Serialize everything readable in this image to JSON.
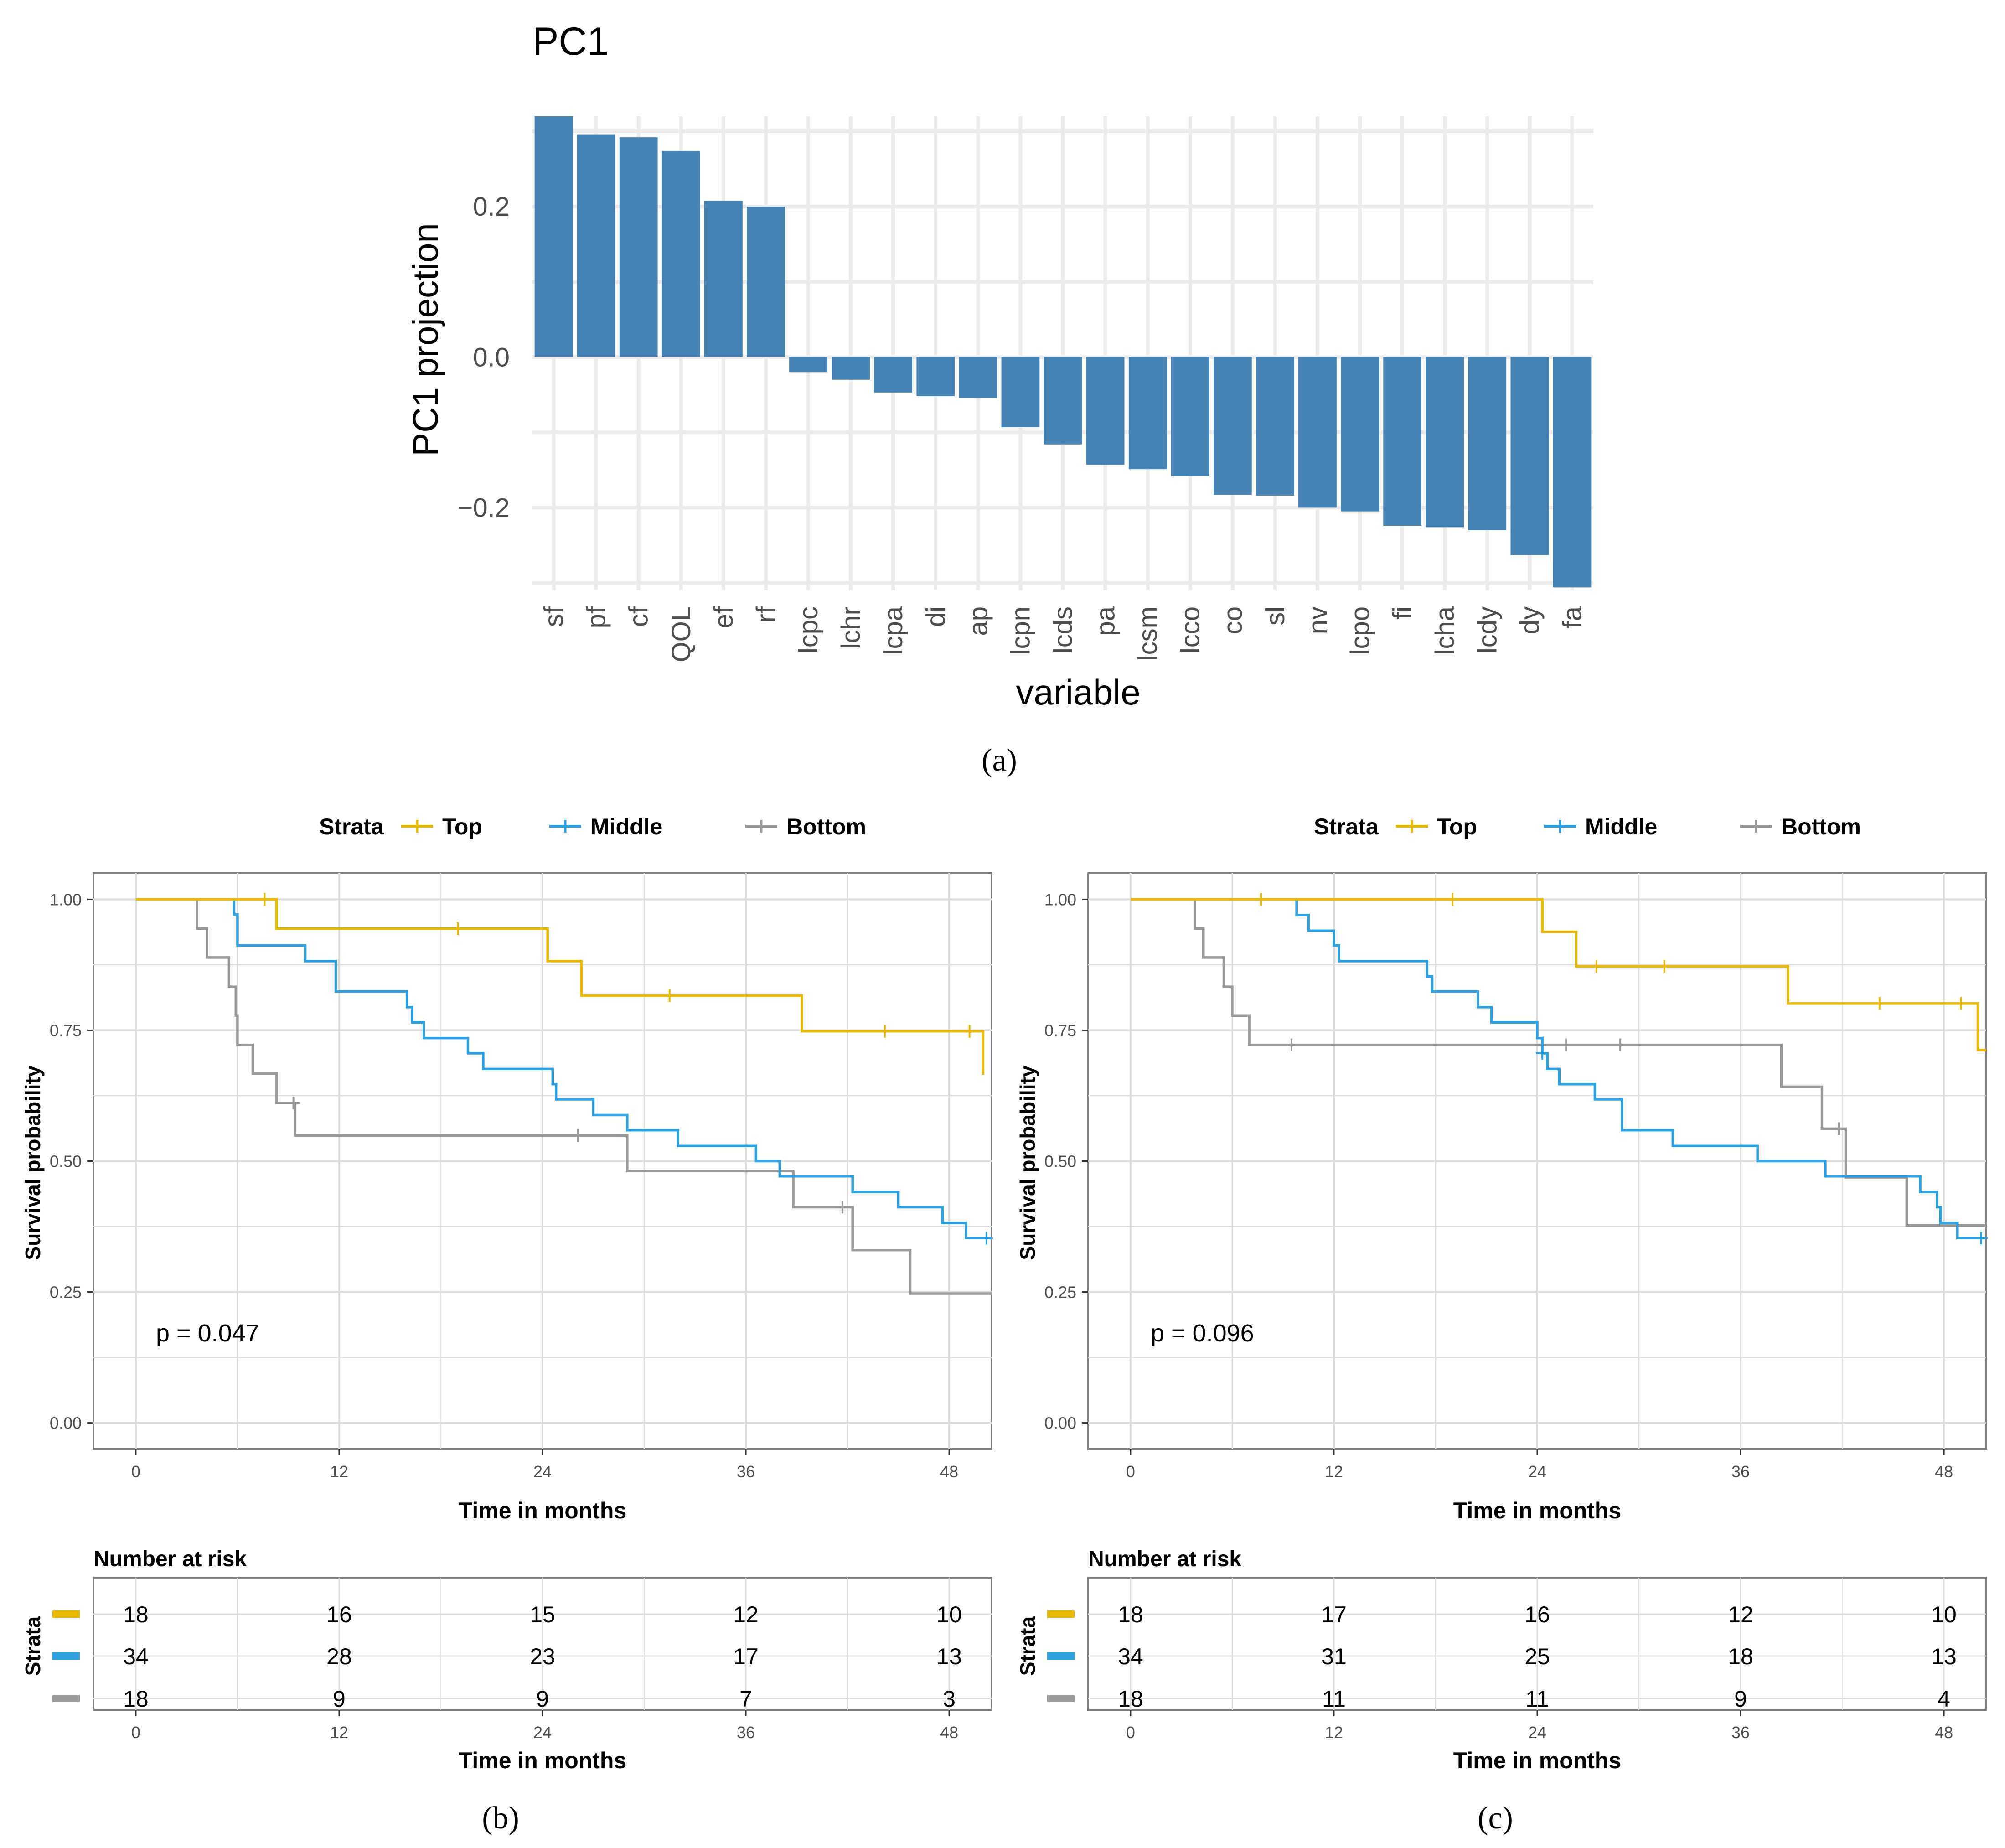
{
  "figure_labels": {
    "a": "(a)",
    "b": "(b)",
    "c": "(c)"
  },
  "colors": {
    "bar": "#4682B4",
    "top": "#E7B800",
    "middle": "#2E9FDF",
    "bottom": "#999999",
    "grid": "#EBEBEB",
    "km_grid": "#DCDCDC"
  },
  "chart_data": [
    {
      "id": "a",
      "type": "bar",
      "title": "PC1",
      "xlabel": "variable",
      "ylabel": "PC1 projection",
      "ylim": [
        -0.31,
        0.32
      ],
      "yticks": [
        -0.2,
        0.0,
        0.2
      ],
      "ytick_labels": [
        "−0.2",
        "0.0",
        "0.2"
      ],
      "categories": [
        "sf",
        "pf",
        "cf",
        "QOL",
        "ef",
        "rf",
        "lcpc",
        "lchr",
        "lcpa",
        "di",
        "ap",
        "lcpn",
        "lcds",
        "pa",
        "lcsm",
        "lcco",
        "co",
        "sl",
        "nv",
        "lcpo",
        "fi",
        "lcha",
        "lcdy",
        "dy",
        "fa"
      ],
      "values": [
        0.32,
        0.296,
        0.292,
        0.274,
        0.208,
        0.2,
        -0.02,
        -0.03,
        -0.047,
        -0.052,
        -0.054,
        -0.093,
        -0.116,
        -0.143,
        -0.149,
        -0.158,
        -0.183,
        -0.184,
        -0.2,
        -0.205,
        -0.224,
        -0.226,
        -0.23,
        -0.263,
        -0.306
      ]
    },
    {
      "id": "b",
      "type": "line",
      "legend_title": "Strata",
      "xlabel": "Time in months",
      "ylabel": "Survival probability",
      "xlim": [
        -2.5,
        50.5
      ],
      "ylim": [
        -0.05,
        1.05
      ],
      "xticks": [
        0,
        12,
        24,
        36,
        48
      ],
      "yticks": [
        0,
        0.25,
        0.5,
        0.75,
        1.0
      ],
      "ytick_labels": [
        "0.00",
        "0.25",
        "0.50",
        "0.75",
        "1.00"
      ],
      "pvalue": "p = 0.047",
      "series": [
        {
          "name": "Top",
          "color_key": "top",
          "steps": [
            [
              0,
              1
            ],
            [
              8.3,
              0.944
            ],
            [
              24.3,
              0.882
            ],
            [
              26.3,
              0.816
            ],
            [
              39.3,
              0.748
            ],
            [
              50.0,
              0.665
            ]
          ],
          "censors": [
            [
              7.6,
              1
            ],
            [
              19,
              0.944
            ],
            [
              31.5,
              0.816
            ],
            [
              44.2,
              0.748
            ],
            [
              49.2,
              0.748
            ]
          ]
        },
        {
          "name": "Middle",
          "color_key": "middle",
          "steps": [
            [
              0,
              1
            ],
            [
              5.8,
              0.971
            ],
            [
              6,
              0.912
            ],
            [
              10,
              0.882
            ],
            [
              11.8,
              0.824
            ],
            [
              16,
              0.794
            ],
            [
              16.3,
              0.765
            ],
            [
              17,
              0.735
            ],
            [
              19.6,
              0.706
            ],
            [
              20.5,
              0.676
            ],
            [
              24.6,
              0.647
            ],
            [
              24.8,
              0.618
            ],
            [
              27,
              0.588
            ],
            [
              29,
              0.559
            ],
            [
              32,
              0.529
            ],
            [
              36.6,
              0.5
            ],
            [
              38,
              0.471
            ],
            [
              42.3,
              0.441
            ],
            [
              45,
              0.412
            ],
            [
              47.6,
              0.382
            ],
            [
              49,
              0.353
            ],
            [
              50.5,
              0.353
            ]
          ],
          "censors": [
            [
              50.2,
              0.353
            ]
          ]
        },
        {
          "name": "Bottom",
          "color_key": "bottom",
          "steps": [
            [
              0,
              1
            ],
            [
              3.6,
              0.944
            ],
            [
              4.2,
              0.889
            ],
            [
              5.5,
              0.833
            ],
            [
              5.9,
              0.778
            ],
            [
              6,
              0.722
            ],
            [
              6.9,
              0.667
            ],
            [
              8.3,
              0.611
            ],
            [
              9.4,
              0.549
            ],
            [
              29,
              0.481
            ],
            [
              38.8,
              0.412
            ],
            [
              42.3,
              0.33
            ],
            [
              45.7,
              0.247
            ],
            [
              50.5,
              0.247
            ]
          ],
          "censors": [
            [
              9.3,
              0.611
            ],
            [
              26.1,
              0.549
            ],
            [
              41.7,
              0.412
            ]
          ]
        }
      ],
      "risk_table": {
        "title": "Number at risk",
        "ylabel": "Strata",
        "times": [
          0,
          12,
          24,
          36,
          48
        ],
        "rows": [
          {
            "name": "Top",
            "color_key": "top",
            "values": [
              "18",
              "16",
              "15",
              "12",
              "10"
            ]
          },
          {
            "name": "Middle",
            "color_key": "middle",
            "values": [
              "34",
              "28",
              "23",
              "17",
              "13"
            ]
          },
          {
            "name": "Bottom",
            "color_key": "bottom",
            "values": [
              "18",
              "9",
              "9",
              "7",
              "3"
            ]
          }
        ]
      }
    },
    {
      "id": "c",
      "type": "line",
      "legend_title": "Strata",
      "xlabel": "Time in months",
      "ylabel": "Survival probability",
      "xlim": [
        -2.5,
        50.5
      ],
      "ylim": [
        -0.05,
        1.05
      ],
      "xticks": [
        0,
        12,
        24,
        36,
        48
      ],
      "yticks": [
        0,
        0.25,
        0.5,
        0.75,
        1.0
      ],
      "ytick_labels": [
        "0.00",
        "0.25",
        "0.50",
        "0.75",
        "1.00"
      ],
      "pvalue": "p = 0.096",
      "series": [
        {
          "name": "Top",
          "color_key": "top",
          "steps": [
            [
              0,
              1
            ],
            [
              24.3,
              0.938
            ],
            [
              26.3,
              0.872
            ],
            [
              38.8,
              0.801
            ],
            [
              50,
              0.712
            ],
            [
              50.5,
              0.712
            ]
          ],
          "censors": [
            [
              7.7,
              1
            ],
            [
              19,
              1
            ],
            [
              27.5,
              0.872
            ],
            [
              31.5,
              0.872
            ],
            [
              44.2,
              0.801
            ],
            [
              49,
              0.801
            ]
          ]
        },
        {
          "name": "Middle",
          "color_key": "middle",
          "steps": [
            [
              0,
              1
            ],
            [
              9.8,
              0.97
            ],
            [
              10.5,
              0.94
            ],
            [
              12,
              0.912
            ],
            [
              12.3,
              0.882
            ],
            [
              17.5,
              0.853
            ],
            [
              17.8,
              0.824
            ],
            [
              20.5,
              0.794
            ],
            [
              21.3,
              0.765
            ],
            [
              24,
              0.735
            ],
            [
              24.3,
              0.706
            ],
            [
              24.6,
              0.676
            ],
            [
              25.3,
              0.647
            ],
            [
              27.4,
              0.618
            ],
            [
              29,
              0.559
            ],
            [
              32,
              0.529
            ],
            [
              37,
              0.5
            ],
            [
              41,
              0.471
            ],
            [
              46.6,
              0.441
            ],
            [
              47.6,
              0.412
            ],
            [
              47.8,
              0.382
            ],
            [
              48.8,
              0.353
            ],
            [
              50.5,
              0.353
            ]
          ],
          "censors": [
            [
              24.3,
              0.706
            ],
            [
              50.2,
              0.353
            ]
          ]
        },
        {
          "name": "Bottom",
          "color_key": "bottom",
          "steps": [
            [
              0,
              1
            ],
            [
              3.8,
              0.944
            ],
            [
              4.3,
              0.889
            ],
            [
              5.5,
              0.833
            ],
            [
              6,
              0.778
            ],
            [
              7,
              0.722
            ],
            [
              38.4,
              0.642
            ],
            [
              40.8,
              0.562
            ],
            [
              42.2,
              0.469
            ],
            [
              45.8,
              0.377
            ],
            [
              50.5,
              0.377
            ]
          ],
          "censors": [
            [
              9.5,
              0.722
            ],
            [
              25.7,
              0.722
            ],
            [
              28.9,
              0.722
            ],
            [
              41.8,
              0.562
            ]
          ]
        }
      ],
      "risk_table": {
        "title": "Number at risk",
        "ylabel": "Strata",
        "times": [
          0,
          12,
          24,
          36,
          48
        ],
        "rows": [
          {
            "name": "Top",
            "color_key": "top",
            "values": [
              "18",
              "17",
              "16",
              "12",
              "10"
            ]
          },
          {
            "name": "Middle",
            "color_key": "middle",
            "values": [
              "34",
              "31",
              "25",
              "18",
              "13"
            ]
          },
          {
            "name": "Bottom",
            "color_key": "bottom",
            "values": [
              "18",
              "11",
              "11",
              "9",
              "4"
            ]
          }
        ]
      }
    }
  ]
}
